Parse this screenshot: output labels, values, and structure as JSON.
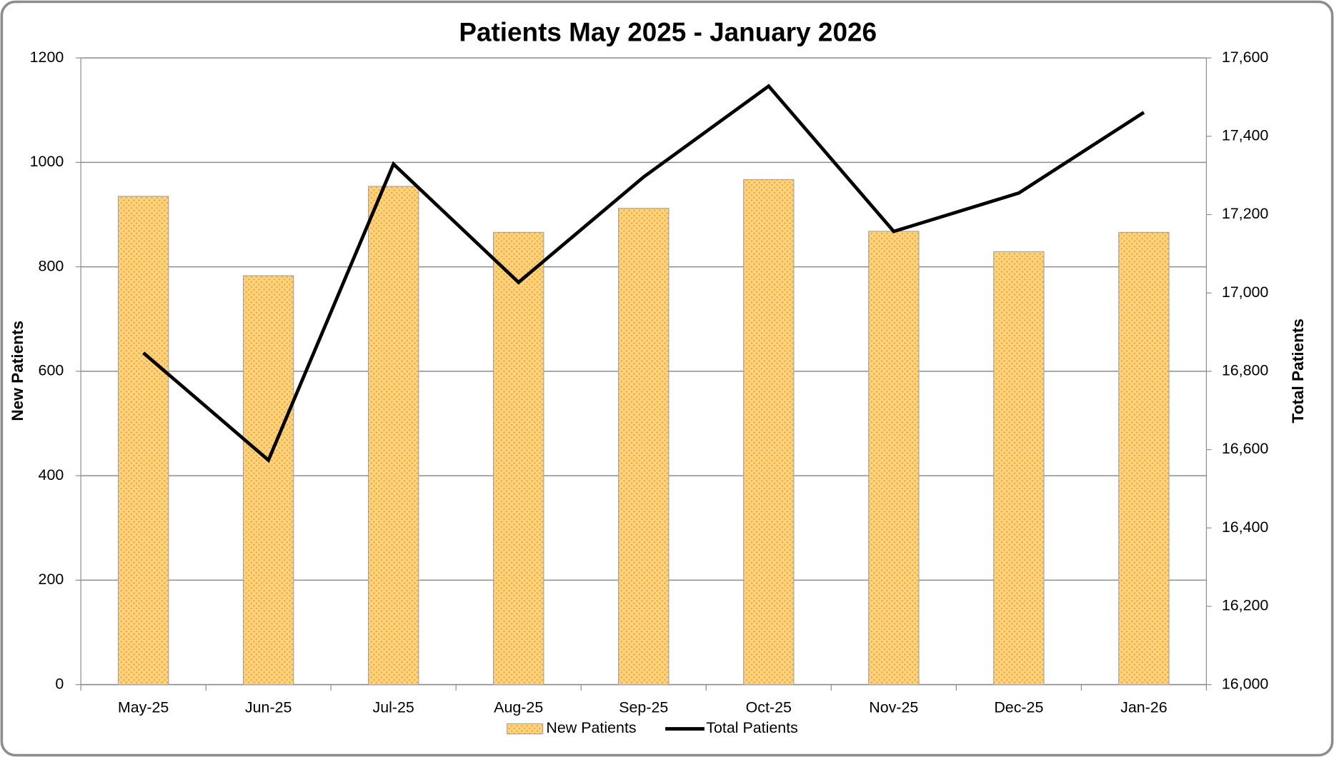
{
  "chart_data": {
    "type": "bar_line",
    "title": "Patients May 2025 - January 2026",
    "categories": [
      "May-25",
      "Jun-25",
      "Jul-25",
      "Aug-25",
      "Sep-25",
      "Oct-25",
      "Nov-25",
      "Dec-25",
      "Jan-26"
    ],
    "y_label": "New Patients",
    "y2_label": "Total Patients",
    "ylim": [
      0,
      1200
    ],
    "yticks": [
      0,
      200,
      400,
      600,
      800,
      1000,
      1200
    ],
    "y2lim": [
      16000,
      17600
    ],
    "y2ticks": [
      {
        "value": 16000,
        "label": "16,000"
      },
      {
        "value": 16200,
        "label": "16,200"
      },
      {
        "value": 16400,
        "label": "16,400"
      },
      {
        "value": 16600,
        "label": "16,600"
      },
      {
        "value": 16800,
        "label": "16,800"
      },
      {
        "value": 17000,
        "label": "17,000"
      },
      {
        "value": 17200,
        "label": "17,200"
      },
      {
        "value": 17400,
        "label": "17,400"
      },
      {
        "value": 17600,
        "label": "17,600"
      }
    ],
    "grid": true,
    "legend": "bottom",
    "series": [
      {
        "name": "New Patients",
        "type": "bar",
        "color": "#ffd47f",
        "values": [
          935,
          783,
          954,
          866,
          912,
          967,
          868,
          829,
          866
        ]
      },
      {
        "name": "Total Patients",
        "type": "line",
        "axis": "y2",
        "color": "#000000",
        "values": [
          16847,
          16573,
          17329,
          17027,
          17296,
          17528,
          17157,
          17255,
          17461
        ]
      }
    ]
  }
}
